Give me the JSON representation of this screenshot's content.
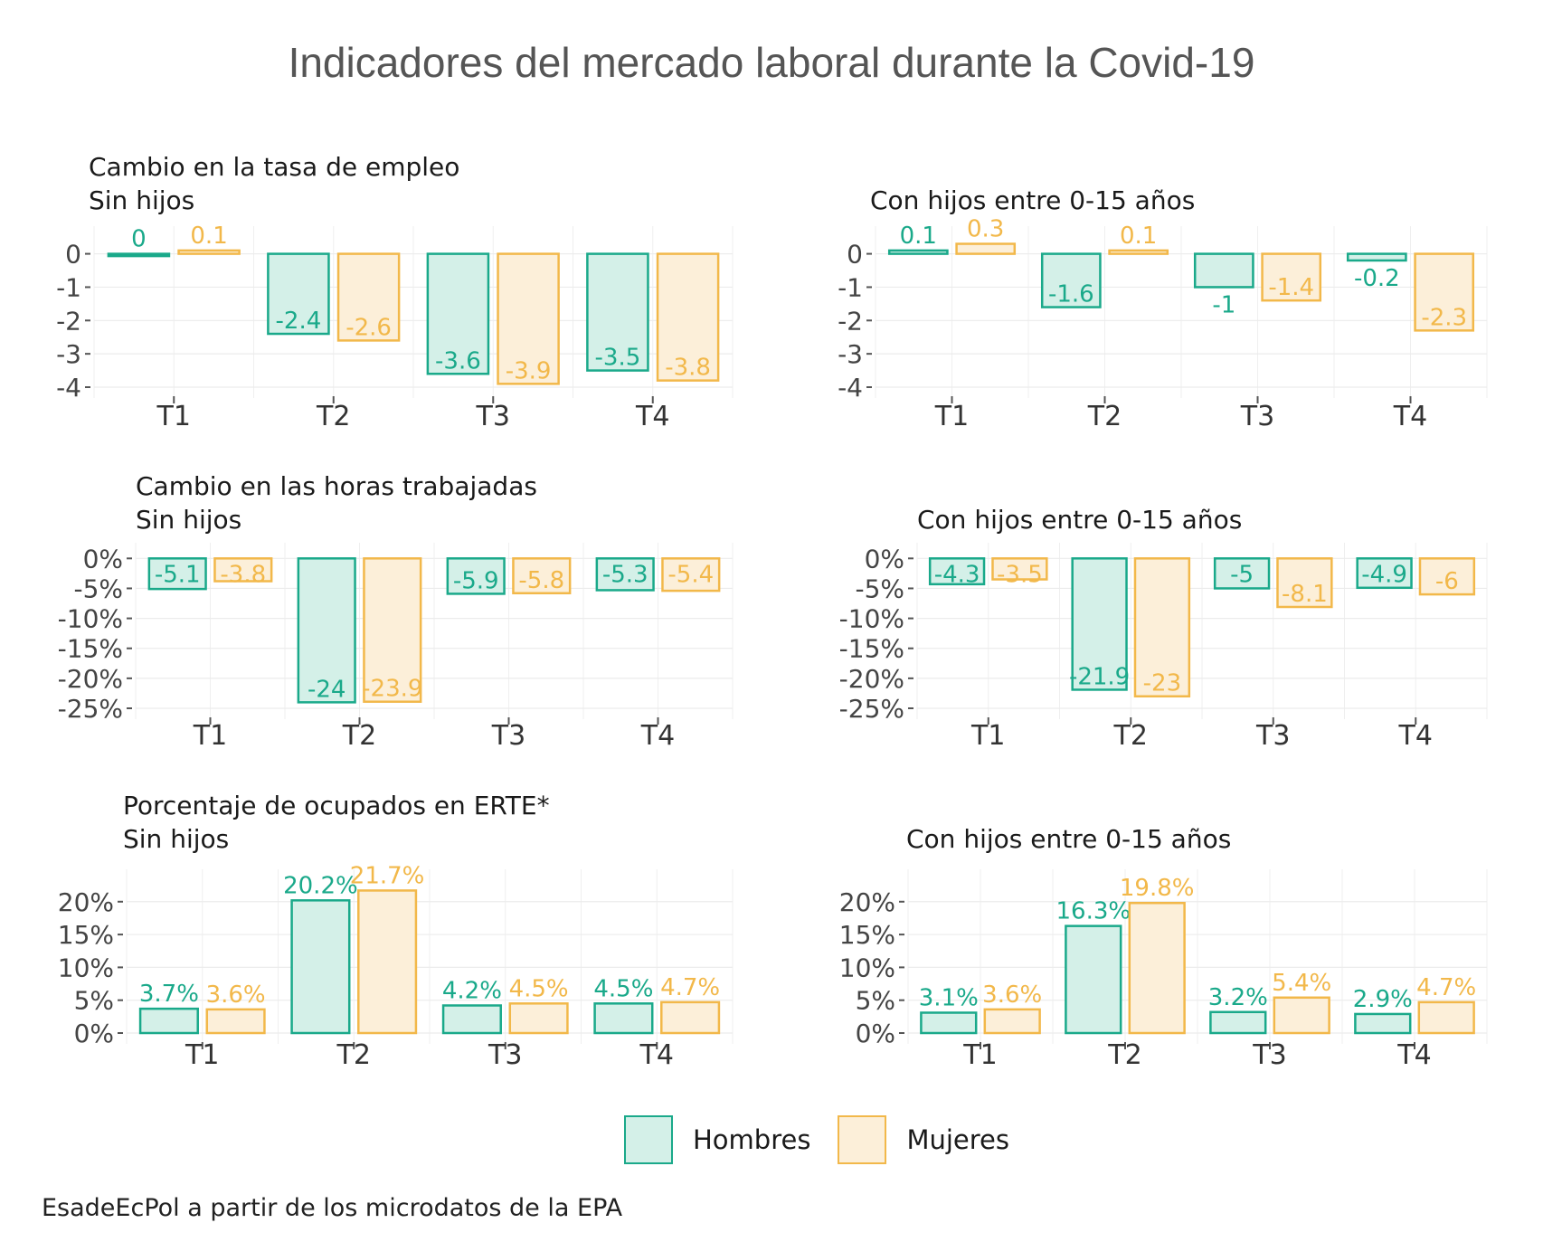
{
  "title": "Indicadores del mercado laboral durante la Covid-19",
  "colors": {
    "hombres": "#1aa98a",
    "hombres_fill": "#d4f0e8",
    "mujeres": "#f2b84a",
    "mujeres_fill": "#fcefd9"
  },
  "legend": {
    "hombres": "Hombres",
    "mujeres": "Mujeres"
  },
  "source": "EsadeEcPol a partir de los microdatos de la EPA",
  "panel_titles": {
    "empleo_sin": [
      "Cambio en la tasa de empleo",
      "Sin hijos"
    ],
    "empleo_con": [
      "Con hijos entre 0-15 años"
    ],
    "horas_sin": [
      "Cambio en las horas trabajadas",
      "Sin hijos"
    ],
    "horas_con": [
      "Con hijos entre 0-15 años"
    ],
    "erte_sin": [
      "Porcentaje de ocupados en ERTE*",
      "Sin hijos"
    ],
    "erte_con": [
      "Con hijos entre 0-15 años"
    ]
  },
  "chart_data": [
    {
      "id": "empleo_sin",
      "type": "bar",
      "categories": [
        "T1",
        "T2",
        "T3",
        "T4"
      ],
      "ylim": [
        -4,
        0.45
      ],
      "yticks": [
        0,
        -1,
        -2,
        -3,
        -4
      ],
      "ytick_labels": [
        "0",
        "-1",
        "-2",
        "-3",
        "-4"
      ],
      "series": [
        {
          "name": "Hombres",
          "values": [
            0,
            -2.4,
            -3.6,
            -3.5
          ],
          "labels": [
            "0",
            "-2.4",
            "-3.6",
            "-3.5"
          ]
        },
        {
          "name": "Mujeres",
          "values": [
            0.1,
            -2.6,
            -3.9,
            -3.8
          ],
          "labels": [
            "0.1",
            "-2.6",
            "-3.9",
            "-3.8"
          ]
        }
      ]
    },
    {
      "id": "empleo_con",
      "type": "bar",
      "categories": [
        "T1",
        "T2",
        "T3",
        "T4"
      ],
      "ylim": [
        -4,
        0.45
      ],
      "yticks": [
        0,
        -1,
        -2,
        -3,
        -4
      ],
      "ytick_labels": [
        "0",
        "-1",
        "-2",
        "-3",
        "-4"
      ],
      "series": [
        {
          "name": "Hombres",
          "values": [
            0.1,
            -1.6,
            -1,
            -0.2
          ],
          "labels": [
            "0.1",
            "-1.6",
            "-1",
            "-0.2"
          ]
        },
        {
          "name": "Mujeres",
          "values": [
            0.3,
            0.1,
            -1.4,
            -2.3
          ],
          "labels": [
            "0.3",
            "0.1",
            "-1.4",
            "-2.3"
          ]
        }
      ]
    },
    {
      "id": "horas_sin",
      "type": "bar",
      "categories": [
        "T1",
        "T2",
        "T3",
        "T4"
      ],
      "ylim": [
        -25,
        0.5
      ],
      "yticks": [
        0,
        -5,
        -10,
        -15,
        -20,
        -25
      ],
      "ytick_labels": [
        "0%",
        "-5%",
        "-10%",
        "-15%",
        "-20%",
        "-25%"
      ],
      "series": [
        {
          "name": "Hombres",
          "values": [
            -5.1,
            -24,
            -5.9,
            -5.3
          ],
          "labels": [
            "-5.1",
            "-24",
            "-5.9",
            "-5.3"
          ]
        },
        {
          "name": "Mujeres",
          "values": [
            -3.8,
            -23.9,
            -5.8,
            -5.4
          ],
          "labels": [
            "-3.8",
            "-23.9",
            "-5.8",
            "-5.4"
          ]
        }
      ]
    },
    {
      "id": "horas_con",
      "type": "bar",
      "categories": [
        "T1",
        "T2",
        "T3",
        "T4"
      ],
      "ylim": [
        -25,
        0.5
      ],
      "yticks": [
        0,
        -5,
        -10,
        -15,
        -20,
        -25
      ],
      "ytick_labels": [
        "0%",
        "-5%",
        "-10%",
        "-15%",
        "-20%",
        "-25%"
      ],
      "series": [
        {
          "name": "Hombres",
          "values": [
            -4.3,
            -21.9,
            -5,
            -4.9
          ],
          "labels": [
            "-4.3",
            "-21.9",
            "-5",
            "-4.9"
          ]
        },
        {
          "name": "Mujeres",
          "values": [
            -3.5,
            -23,
            -8.1,
            -6
          ],
          "labels": [
            "-3.5",
            "-23",
            "-8.1",
            "-6"
          ]
        }
      ]
    },
    {
      "id": "erte_sin",
      "type": "bar",
      "categories": [
        "T1",
        "T2",
        "T3",
        "T4"
      ],
      "ylim": [
        0,
        23
      ],
      "yticks": [
        20,
        15,
        10,
        5,
        0
      ],
      "ytick_labels": [
        "20%",
        "15%",
        "10%",
        "5%",
        "0%"
      ],
      "series": [
        {
          "name": "Hombres",
          "values": [
            3.7,
            20.2,
            4.2,
            4.5
          ],
          "labels": [
            "3.7%",
            "20.2%",
            "4.2%",
            "4.5%"
          ]
        },
        {
          "name": "Mujeres",
          "values": [
            3.6,
            21.7,
            4.5,
            4.7
          ],
          "labels": [
            "3.6%",
            "21.7%",
            "4.5%",
            "4.7%"
          ]
        }
      ]
    },
    {
      "id": "erte_con",
      "type": "bar",
      "categories": [
        "T1",
        "T2",
        "T3",
        "T4"
      ],
      "ylim": [
        0,
        23
      ],
      "yticks": [
        20,
        15,
        10,
        5,
        0
      ],
      "ytick_labels": [
        "20%",
        "15%",
        "10%",
        "5%",
        "0%"
      ],
      "series": [
        {
          "name": "Hombres",
          "values": [
            3.1,
            16.3,
            3.2,
            2.9
          ],
          "labels": [
            "3.1%",
            "16.3%",
            "3.2%",
            "2.9%"
          ]
        },
        {
          "name": "Mujeres",
          "values": [
            3.6,
            19.8,
            5.4,
            4.7
          ],
          "labels": [
            "3.6%",
            "19.8%",
            "5.4%",
            "4.7%"
          ]
        }
      ]
    }
  ]
}
